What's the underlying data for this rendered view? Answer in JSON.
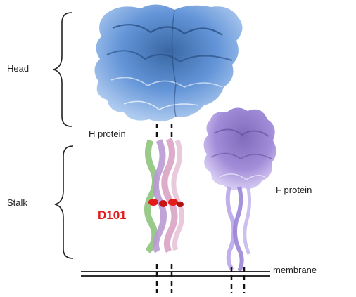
{
  "labels": {
    "head": "Head",
    "stalk": "Stalk",
    "h_protein": "H protein",
    "f_protein": "F protein",
    "membrane": "membrane",
    "mutation": "D101"
  },
  "colors": {
    "head_blue": "#5b8fd6",
    "head_dark": "#2f5f9e",
    "head_light": "#a9c7ee",
    "f_purple": "#9c86d6",
    "f_light": "#c8b8ee",
    "helix_green": "#8fc47d",
    "helix_pink": "#d9a3c4",
    "helix_violet": "#b99ad4",
    "mutation_red": "#e31b1b",
    "dash": "#111111"
  }
}
